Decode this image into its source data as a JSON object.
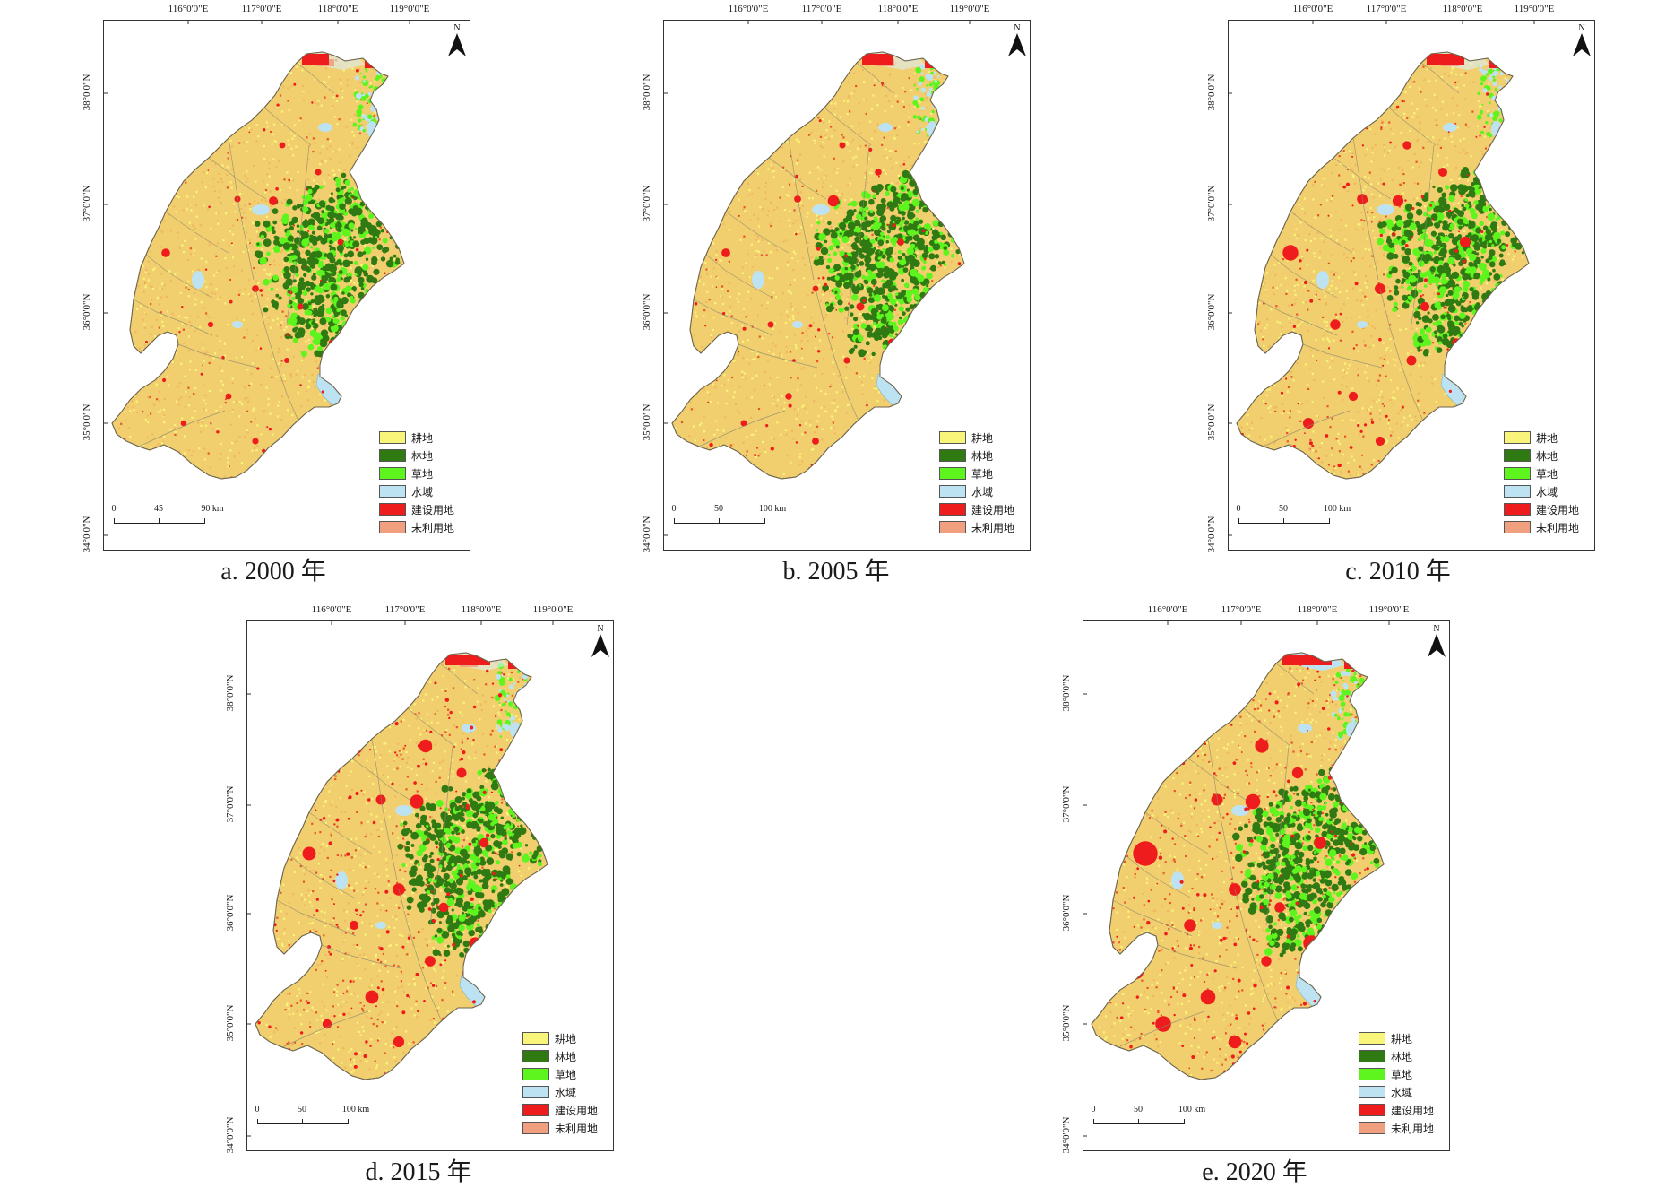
{
  "lon_labels": [
    "116°0'0\"E",
    "117°0'0\"E",
    "118°0'0\"E",
    "119°0'0\"E"
  ],
  "lat_labels": [
    "38°0'0\"N",
    "37°0'0\"N",
    "36°0'0\"N",
    "35°0'0\"N",
    "34°0'0\"N"
  ],
  "north_letter": "N",
  "legend": [
    {
      "label": "耕地",
      "color": "#f9f57a"
    },
    {
      "label": "林地",
      "color": "#2f7a12"
    },
    {
      "label": "草地",
      "color": "#5ef41e"
    },
    {
      "label": "水域",
      "color": "#bde3f3"
    },
    {
      "label": "建设用地",
      "color": "#ee1c1c"
    },
    {
      "label": "未利用地",
      "color": "#f0a07e"
    }
  ],
  "panels": [
    {
      "caption": "a. 2000 年",
      "scale": [
        "0",
        "45",
        "90 km"
      ],
      "built_level": 1
    },
    {
      "caption": "b. 2005 年",
      "scale": [
        "0",
        "50",
        "100 km"
      ],
      "built_level": 1.4
    },
    {
      "caption": "c. 2010 年",
      "scale": [
        "0",
        "50",
        "100 km"
      ],
      "built_level": 2.2
    },
    {
      "caption": "d. 2015 年",
      "scale": [
        "0",
        "50",
        "100 km"
      ],
      "built_level": 3
    },
    {
      "caption": "e. 2020 年",
      "scale": [
        "0",
        "50",
        "100 km"
      ],
      "built_level": 3.6
    }
  ]
}
